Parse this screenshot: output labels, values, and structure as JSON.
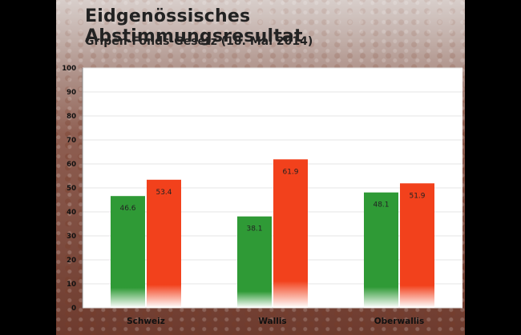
{
  "title": "Eidgenössisches Abstimmungsresultat",
  "subtitle": "Gripen-Fonds-Gesetz (18. Mai 2014)",
  "colors": {
    "green": "#2f9a36",
    "red": "#f2411c",
    "plot_bg": "#ffffff",
    "grid": "#e6e6e6"
  },
  "chart_data": {
    "type": "bar",
    "title": "Eidgenössisches Abstimmungsresultat",
    "subtitle": "Gripen-Fonds-Gesetz (18. Mai 2014)",
    "categories": [
      "Schweiz",
      "Wallis",
      "Oberwallis"
    ],
    "series": [
      {
        "values": [
          46.6,
          38.1,
          48.1
        ],
        "color": "#2f9a36"
      },
      {
        "values": [
          53.4,
          61.9,
          51.9
        ],
        "color": "#f2411c"
      }
    ],
    "ylim": [
      0,
      100
    ],
    "yticks": [
      0,
      10,
      20,
      30,
      40,
      50,
      60,
      70,
      80,
      90,
      100
    ],
    "grid": true,
    "data_labels": true
  }
}
